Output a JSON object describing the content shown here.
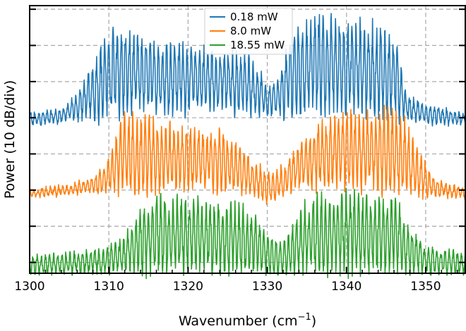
{
  "chart_data": {
    "type": "line",
    "xlabel": "Wavenumber (cm",
    "xlabel_sup": "−1",
    "xlabel_tail": ")",
    "ylabel": "Power (10 dB/div)",
    "xlim": [
      1300,
      1355
    ],
    "ylim": [
      0,
      7.4
    ],
    "x_ticks": [
      1300,
      1310,
      1320,
      1330,
      1340,
      1350
    ],
    "x_tick_labels": [
      "1300",
      "1310",
      "1320",
      "1330",
      "1340",
      "1350"
    ],
    "y_ticks": [
      0.3,
      1.3,
      2.3,
      3.3,
      4.3,
      5.3,
      6.3,
      7.3
    ],
    "y_tick_labels": [],
    "grid": true,
    "legend_position": "top-center",
    "series": [
      {
        "name": "0.18 mW",
        "color": "#1f77b4",
        "envelope_x": [
          1300,
          1304,
          1306,
          1308,
          1309.5,
          1311,
          1315,
          1320,
          1325,
          1328,
          1330,
          1331.5,
          1333,
          1336,
          1340,
          1344,
          1346.5,
          1347.5,
          1350,
          1355
        ],
        "envelope_hi": [
          4.4,
          4.5,
          4.9,
          5.7,
          6.4,
          6.7,
          6.3,
          6.2,
          6.0,
          5.9,
          5.1,
          5.3,
          6.5,
          7.0,
          6.8,
          6.7,
          6.3,
          4.9,
          4.6,
          4.4
        ],
        "envelope_lo": [
          4.1,
          4.2,
          4.3,
          4.35,
          4.4,
          4.5,
          4.6,
          4.6,
          4.6,
          4.5,
          4.4,
          4.4,
          4.5,
          4.6,
          4.6,
          4.5,
          4.4,
          4.3,
          4.2,
          4.1
        ]
      },
      {
        "name": "8.0 mW",
        "color": "#ff7f0e",
        "envelope_x": [
          1300,
          1305,
          1308,
          1310,
          1311.5,
          1316,
          1320,
          1324,
          1327,
          1328.5,
          1330,
          1332,
          1334,
          1337,
          1341,
          1345,
          1347,
          1349,
          1351,
          1355
        ],
        "envelope_hi": [
          2.3,
          2.4,
          2.6,
          3.1,
          4.2,
          4.1,
          3.9,
          3.8,
          3.3,
          3.0,
          2.7,
          2.9,
          3.5,
          4.1,
          4.3,
          4.4,
          4.2,
          3.3,
          2.6,
          2.3
        ],
        "envelope_lo": [
          2.1,
          2.2,
          2.25,
          2.3,
          2.35,
          2.4,
          2.4,
          2.4,
          2.3,
          2.2,
          2.0,
          2.2,
          2.4,
          2.5,
          2.5,
          2.4,
          2.3,
          2.2,
          2.15,
          2.1
        ]
      },
      {
        "name": "18.55 mW",
        "color": "#2ca02c",
        "envelope_x": [
          1300,
          1309,
          1312,
          1314,
          1316,
          1320,
          1324,
          1327,
          1329,
          1331,
          1332.5,
          1334,
          1336,
          1340,
          1344,
          1346.5,
          1348,
          1350,
          1355
        ],
        "envelope_hi": [
          0.45,
          0.6,
          0.9,
          1.8,
          2.0,
          1.85,
          1.75,
          1.75,
          1.3,
          0.9,
          0.9,
          1.6,
          2.0,
          2.1,
          2.0,
          1.85,
          1.1,
          0.7,
          0.5
        ],
        "envelope_lo": [
          0.0,
          0.05,
          0.1,
          0.15,
          0.15,
          0.2,
          0.2,
          0.15,
          0.1,
          0.0,
          0.0,
          0.1,
          0.15,
          0.2,
          0.2,
          0.15,
          0.1,
          0.05,
          0.0
        ]
      }
    ]
  }
}
